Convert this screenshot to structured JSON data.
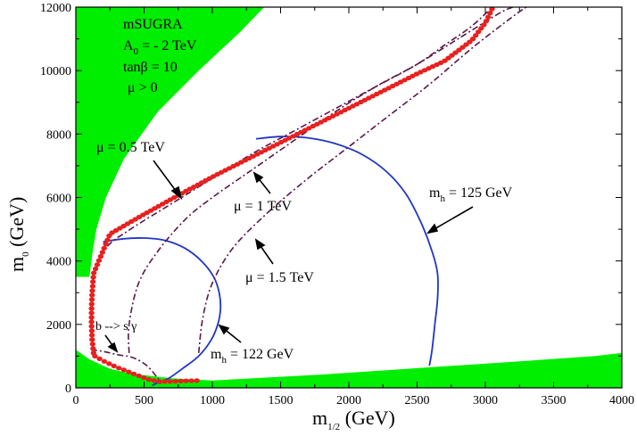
{
  "chart_data": {
    "type": "line",
    "xlabel": "m",
    "xlabel_sub": "1/2",
    "xlabel_unit": " (GeV)",
    "ylabel": "m",
    "ylabel_sub": "0",
    "ylabel_unit": " (GeV)",
    "xlim": [
      0,
      4000
    ],
    "ylim": [
      0,
      12000
    ],
    "x_ticks": [
      0,
      500,
      1000,
      1500,
      2000,
      2500,
      3000,
      3500,
      4000
    ],
    "y_ticks": [
      0,
      2000,
      4000,
      6000,
      8000,
      10000,
      12000
    ],
    "x_tick_labels": [
      "0",
      "500",
      "1000",
      "1500",
      "2000",
      "2500",
      "3000",
      "3500",
      "4000"
    ],
    "y_tick_labels": [
      "0",
      "2000",
      "4000",
      "6000",
      "8000",
      "10000",
      "12000"
    ],
    "grid": false,
    "info": {
      "model": "mSUGRA",
      "a0": "A",
      "a0_sub": "0",
      "a0_value": " = - 2 TeV",
      "tanbeta": "tanβ = 10",
      "mu_sign": "μ > 0"
    },
    "colors": {
      "excluded_region": "#00ee00",
      "higgs_contour": "#1f35c8",
      "mu_contour": "#5a1848",
      "dm_points": "#e8201e"
    },
    "excluded_upper_left": [
      [
        0,
        12000
      ],
      [
        1380,
        12000
      ],
      [
        1200,
        11200
      ],
      [
        900,
        10000
      ],
      [
        600,
        8700
      ],
      [
        350,
        7200
      ],
      [
        220,
        6000
      ],
      [
        150,
        5000
      ],
      [
        120,
        4200
      ],
      [
        100,
        3500
      ],
      [
        0,
        3500
      ]
    ],
    "excluded_bottom": [
      [
        0,
        0
      ],
      [
        0,
        1200
      ],
      [
        100,
        900
      ],
      [
        250,
        600
      ],
      [
        400,
        450
      ],
      [
        700,
        300
      ],
      [
        1000,
        230
      ],
      [
        1800,
        420
      ],
      [
        2600,
        650
      ],
      [
        3300,
        850
      ],
      [
        3800,
        1000
      ],
      [
        4000,
        1100
      ],
      [
        4000,
        0
      ]
    ],
    "series": [
      {
        "label": "m",
        "label_sub": "h",
        "label_value": " = 122 GeV",
        "kind": "higgs",
        "points": [
          [
            200,
            4600
          ],
          [
            350,
            4700
          ],
          [
            500,
            4720
          ],
          [
            650,
            4650
          ],
          [
            800,
            4400
          ],
          [
            920,
            4000
          ],
          [
            1010,
            3500
          ],
          [
            1050,
            3000
          ],
          [
            1060,
            2500
          ],
          [
            1040,
            2000
          ],
          [
            990,
            1500
          ],
          [
            900,
            1000
          ],
          [
            780,
            600
          ],
          [
            680,
            300
          ],
          [
            600,
            160
          ],
          [
            560,
            80
          ]
        ]
      },
      {
        "label": "m",
        "label_sub": "h",
        "label_value": " = 125 GeV",
        "kind": "higgs",
        "points": [
          [
            1320,
            7850
          ],
          [
            1500,
            7920
          ],
          [
            1700,
            7880
          ],
          [
            1900,
            7700
          ],
          [
            2100,
            7350
          ],
          [
            2280,
            6800
          ],
          [
            2420,
            6100
          ],
          [
            2530,
            5200
          ],
          [
            2610,
            4300
          ],
          [
            2650,
            3600
          ],
          [
            2650,
            2800
          ],
          [
            2630,
            2000
          ],
          [
            2610,
            1200
          ],
          [
            2590,
            700
          ]
        ]
      },
      {
        "label": "μ = 0.5 TeV",
        "kind": "mu",
        "points": [
          [
            130,
            1200
          ],
          [
            120,
            2000
          ],
          [
            130,
            3500
          ],
          [
            220,
            4400
          ],
          [
            400,
            5000
          ],
          [
            700,
            5800
          ],
          [
            1000,
            6600
          ],
          [
            1300,
            7400
          ],
          [
            1600,
            8100
          ],
          [
            1900,
            8800
          ],
          [
            2200,
            9500
          ],
          [
            2500,
            10200
          ],
          [
            2700,
            10800
          ],
          [
            2900,
            11400
          ],
          [
            3050,
            12000
          ]
        ]
      },
      {
        "label": "μ = 1 TeV",
        "kind": "mu",
        "points": [
          [
            390,
            1100
          ],
          [
            390,
            2000
          ],
          [
            460,
            3300
          ],
          [
            600,
            4300
          ],
          [
            800,
            5300
          ],
          [
            1000,
            6000
          ],
          [
            1300,
            6900
          ],
          [
            1600,
            7800
          ],
          [
            1900,
            8700
          ],
          [
            2200,
            9500
          ],
          [
            2500,
            10200
          ],
          [
            2800,
            11000
          ],
          [
            3100,
            11800
          ],
          [
            3200,
            12000
          ]
        ]
      },
      {
        "label": "μ = 1.5 TeV",
        "kind": "mu",
        "points": [
          [
            900,
            1100
          ],
          [
            930,
            2200
          ],
          [
            1000,
            3300
          ],
          [
            1150,
            4400
          ],
          [
            1400,
            5500
          ],
          [
            1700,
            6600
          ],
          [
            2000,
            7600
          ],
          [
            2300,
            8600
          ],
          [
            2600,
            9600
          ],
          [
            2900,
            10700
          ],
          [
            3200,
            11700
          ],
          [
            3300,
            12000
          ]
        ]
      },
      {
        "label": "b --> s γ",
        "kind": "mu",
        "points": [
          [
            110,
            1200
          ],
          [
            200,
            1150
          ],
          [
            300,
            1050
          ],
          [
            420,
            950
          ],
          [
            520,
            700
          ],
          [
            600,
            300
          ],
          [
            620,
            120
          ]
        ]
      }
    ],
    "dm_band": [
      [
        130,
        1100
      ],
      [
        120,
        1500
      ],
      [
        115,
        2000
      ],
      [
        115,
        2500
      ],
      [
        120,
        3000
      ],
      [
        130,
        3600
      ],
      [
        250,
        4850
      ],
      [
        450,
        5350
      ],
      [
        700,
        5950
      ],
      [
        1000,
        6650
      ],
      [
        1300,
        7300
      ],
      [
        1600,
        7950
      ],
      [
        1900,
        8600
      ],
      [
        2200,
        9250
      ],
      [
        2500,
        9900
      ],
      [
        2700,
        10300
      ],
      [
        2900,
        10950
      ],
      [
        3000,
        11500
      ],
      [
        3050,
        11950
      ]
    ],
    "dm_band_low": [
      [
        140,
        1000
      ],
      [
        200,
        850
      ],
      [
        300,
        650
      ],
      [
        420,
        450
      ],
      [
        520,
        280
      ],
      [
        600,
        200
      ],
      [
        700,
        200
      ],
      [
        800,
        220
      ],
      [
        900,
        230
      ]
    ],
    "annotations": [
      {
        "text": "μ = 0.5 TeV",
        "id": "mu05"
      },
      {
        "text": "μ = 1 TeV",
        "id": "mu1"
      },
      {
        "text": "μ = 1.5 TeV",
        "id": "mu15"
      },
      {
        "text": "b --> s γ",
        "id": "bsg"
      }
    ]
  }
}
